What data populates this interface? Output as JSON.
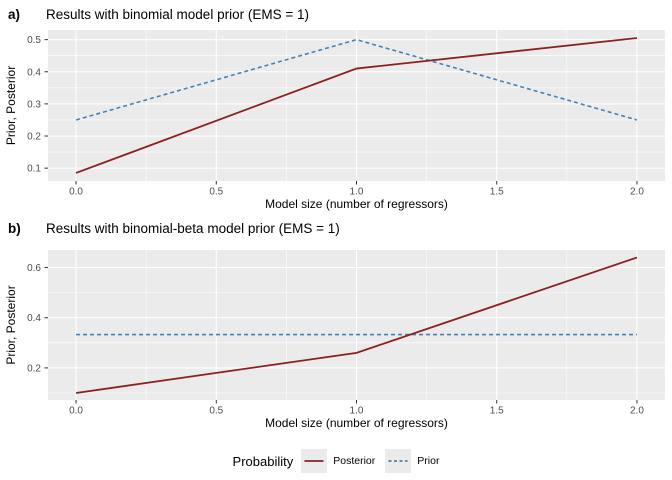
{
  "style": {
    "panel_bg": "#EBEBEB",
    "grid_color": "#FFFFFF",
    "tick_color": "#333333",
    "tick_label_color": "#4D4D4D",
    "posterior_color": "#8B2121",
    "prior_color": "#4682B4",
    "legend_key_bg": "#EBEBEB"
  },
  "chart_data": [
    {
      "type": "line",
      "tag": "a)",
      "title": "Results with binomial model prior (EMS = 1)",
      "xlabel": "Model size (number of regressors)",
      "ylabel": "Prior, Posterior",
      "x": [
        0,
        1,
        2
      ],
      "series": [
        {
          "name": "Posterior",
          "values": [
            0.085,
            0.41,
            0.505
          ],
          "style": "solid",
          "color": "#8B2121"
        },
        {
          "name": "Prior",
          "values": [
            0.25,
            0.5,
            0.25
          ],
          "style": "dashed",
          "color": "#4682B4"
        }
      ],
      "x_tick_labels": [
        "0.0",
        "0.5",
        "1.0",
        "1.5",
        "2.0"
      ],
      "x_tick_values": [
        0,
        0.5,
        1,
        1.5,
        2
      ],
      "y_tick_labels": [
        "0.1",
        "0.2",
        "0.3",
        "0.4",
        "0.5"
      ],
      "y_tick_values": [
        0.1,
        0.2,
        0.3,
        0.4,
        0.5
      ],
      "xlim": [
        -0.1,
        2.1
      ],
      "ylim": [
        0.06,
        0.53
      ],
      "grid": "major+minor",
      "legend_position": "bottom"
    },
    {
      "type": "line",
      "tag": "b)",
      "title": "Results with binomial-beta model prior (EMS = 1)",
      "xlabel": "Model size (number of regressors)",
      "ylabel": "Prior, Posterior",
      "x": [
        0,
        1,
        2
      ],
      "series": [
        {
          "name": "Posterior",
          "values": [
            0.1,
            0.26,
            0.64
          ],
          "style": "solid",
          "color": "#8B2121"
        },
        {
          "name": "Prior",
          "values": [
            0.333,
            0.333,
            0.333
          ],
          "style": "dashed",
          "color": "#4682B4"
        }
      ],
      "x_tick_labels": [
        "0.0",
        "0.5",
        "1.0",
        "1.5",
        "2.0"
      ],
      "x_tick_values": [
        0,
        0.5,
        1,
        1.5,
        2
      ],
      "y_tick_labels": [
        "0.2",
        "0.4",
        "0.6"
      ],
      "y_tick_values": [
        0.2,
        0.4,
        0.6
      ],
      "xlim": [
        -0.1,
        2.1
      ],
      "ylim": [
        0.072,
        0.67
      ],
      "grid": "major+minor",
      "legend_position": "bottom"
    }
  ],
  "legend": {
    "title": "Probability",
    "entries": [
      {
        "label": "Posterior",
        "style": "solid",
        "color": "#8B2121"
      },
      {
        "label": "Prior",
        "style": "dashed",
        "color": "#4682B4"
      }
    ]
  }
}
